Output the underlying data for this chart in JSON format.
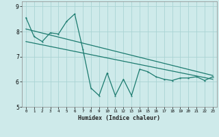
{
  "xlabel": "Humidex (Indice chaleur)",
  "bg_color": "#ceeaea",
  "line_color": "#1a7a6e",
  "grid_color": "#aad4d4",
  "xlim": [
    -0.5,
    23.5
  ],
  "ylim": [
    5,
    9.2
  ],
  "yticks": [
    5,
    6,
    7,
    8,
    9
  ],
  "xticks": [
    0,
    1,
    2,
    3,
    4,
    5,
    6,
    7,
    8,
    9,
    10,
    11,
    12,
    13,
    14,
    15,
    16,
    17,
    18,
    19,
    20,
    21,
    22,
    23
  ],
  "line1_x": [
    0,
    1,
    2,
    3,
    4,
    5,
    6,
    7,
    8,
    9,
    10,
    11,
    12,
    13,
    14,
    15,
    16,
    17,
    18,
    19,
    20,
    21,
    22,
    23
  ],
  "line1_y": [
    8.55,
    7.8,
    7.6,
    7.95,
    7.9,
    8.4,
    8.7,
    7.3,
    5.75,
    5.45,
    6.35,
    5.45,
    6.1,
    5.45,
    6.5,
    6.4,
    6.2,
    6.1,
    6.05,
    6.15,
    6.15,
    6.2,
    6.05,
    6.2
  ],
  "line2_x": [
    0,
    23
  ],
  "line2_y": [
    8.1,
    6.25
  ],
  "line3_x": [
    0,
    23
  ],
  "line3_y": [
    7.6,
    6.1
  ]
}
